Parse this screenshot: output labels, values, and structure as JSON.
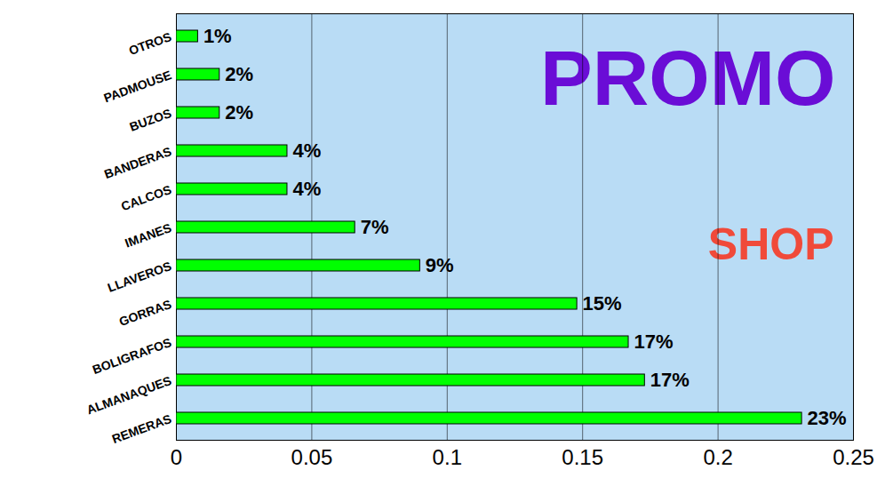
{
  "chart_data": {
    "type": "bar",
    "orientation": "horizontal",
    "categories": [
      "OTROS",
      "PADMOUSE",
      "BUZOS",
      "BANDERAS",
      "CALCOS",
      "IMANES",
      "LLAVEROS",
      "GORRAS",
      "BOLIGRAFOS",
      "ALMANAQUES",
      "REMERAS"
    ],
    "values": [
      0.008,
      0.016,
      0.016,
      0.041,
      0.041,
      0.066,
      0.09,
      0.148,
      0.167,
      0.173,
      0.231
    ],
    "value_labels": [
      "1%",
      "2%",
      "2%",
      "4%",
      "4%",
      "7%",
      "9%",
      "15%",
      "17%",
      "17%",
      "23%"
    ],
    "color": "#00ff00",
    "xlim": [
      0,
      0.25
    ],
    "xticks": [
      0,
      0.05,
      0.1,
      0.15,
      0.2,
      0.25
    ],
    "grid": true,
    "data_labels": true,
    "annotations": [
      "PROMO",
      "SHOP"
    ]
  }
}
